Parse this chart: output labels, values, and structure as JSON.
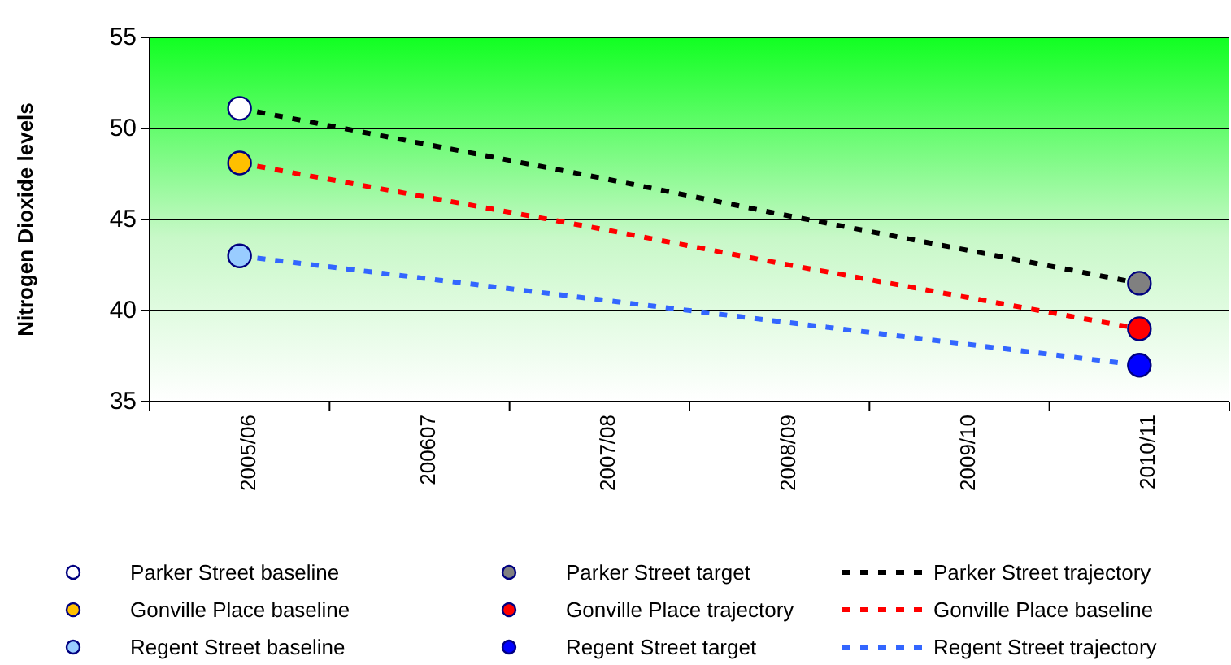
{
  "chart_data": {
    "type": "line",
    "ylabel": "Nitrogen Dioxide levels",
    "categories": [
      "2005/06",
      "200607",
      "2007/08",
      "2008/09",
      "2009/10",
      "2010/11"
    ],
    "ylim": [
      35,
      55
    ],
    "yticks": [
      35,
      40,
      45,
      50,
      55
    ],
    "grid": "y",
    "legend": "bottom",
    "series": [
      {
        "name": "Parker Street baseline",
        "type": "scatter",
        "marker": "circle",
        "color": "#ffffff",
        "values": [
          51.1,
          null,
          null,
          null,
          null,
          null
        ]
      },
      {
        "name": "Parker Street target",
        "type": "scatter",
        "marker": "circle",
        "color": "#808080",
        "values": [
          null,
          null,
          null,
          null,
          null,
          41.5
        ]
      },
      {
        "name": "Parker Street trajectory",
        "line_style": "dashed",
        "color": "#000000",
        "values": [
          51.1,
          49.2,
          47.3,
          45.3,
          43.4,
          41.5
        ]
      },
      {
        "name": "Gonville Place baseline",
        "type": "scatter",
        "marker": "circle",
        "color": "#ffc000",
        "values": [
          48.1,
          null,
          null,
          null,
          null,
          null
        ]
      },
      {
        "name": "Gonville Place trajectory",
        "type": "scatter",
        "marker": "circle",
        "color": "#ff0000",
        "values": [
          null,
          null,
          null,
          null,
          null,
          39.0
        ]
      },
      {
        "name": "Gonville Place baseline",
        "line_style": "dashed",
        "color": "#ff0000",
        "values": [
          48.1,
          46.3,
          44.5,
          42.6,
          40.8,
          39.0
        ]
      },
      {
        "name": "Regent Street baseline",
        "type": "scatter",
        "marker": "circle",
        "color": "#99ccff",
        "values": [
          43.0,
          null,
          null,
          null,
          null,
          null
        ]
      },
      {
        "name": "Regent Street target",
        "type": "scatter",
        "marker": "circle",
        "color": "#0000ff",
        "values": [
          null,
          null,
          null,
          null,
          null,
          37.0
        ]
      },
      {
        "name": "Regent Street trajectory",
        "line_style": "dashed",
        "color": "#3366ff",
        "values": [
          43.0,
          41.8,
          40.6,
          39.4,
          38.2,
          37.0
        ]
      }
    ]
  }
}
